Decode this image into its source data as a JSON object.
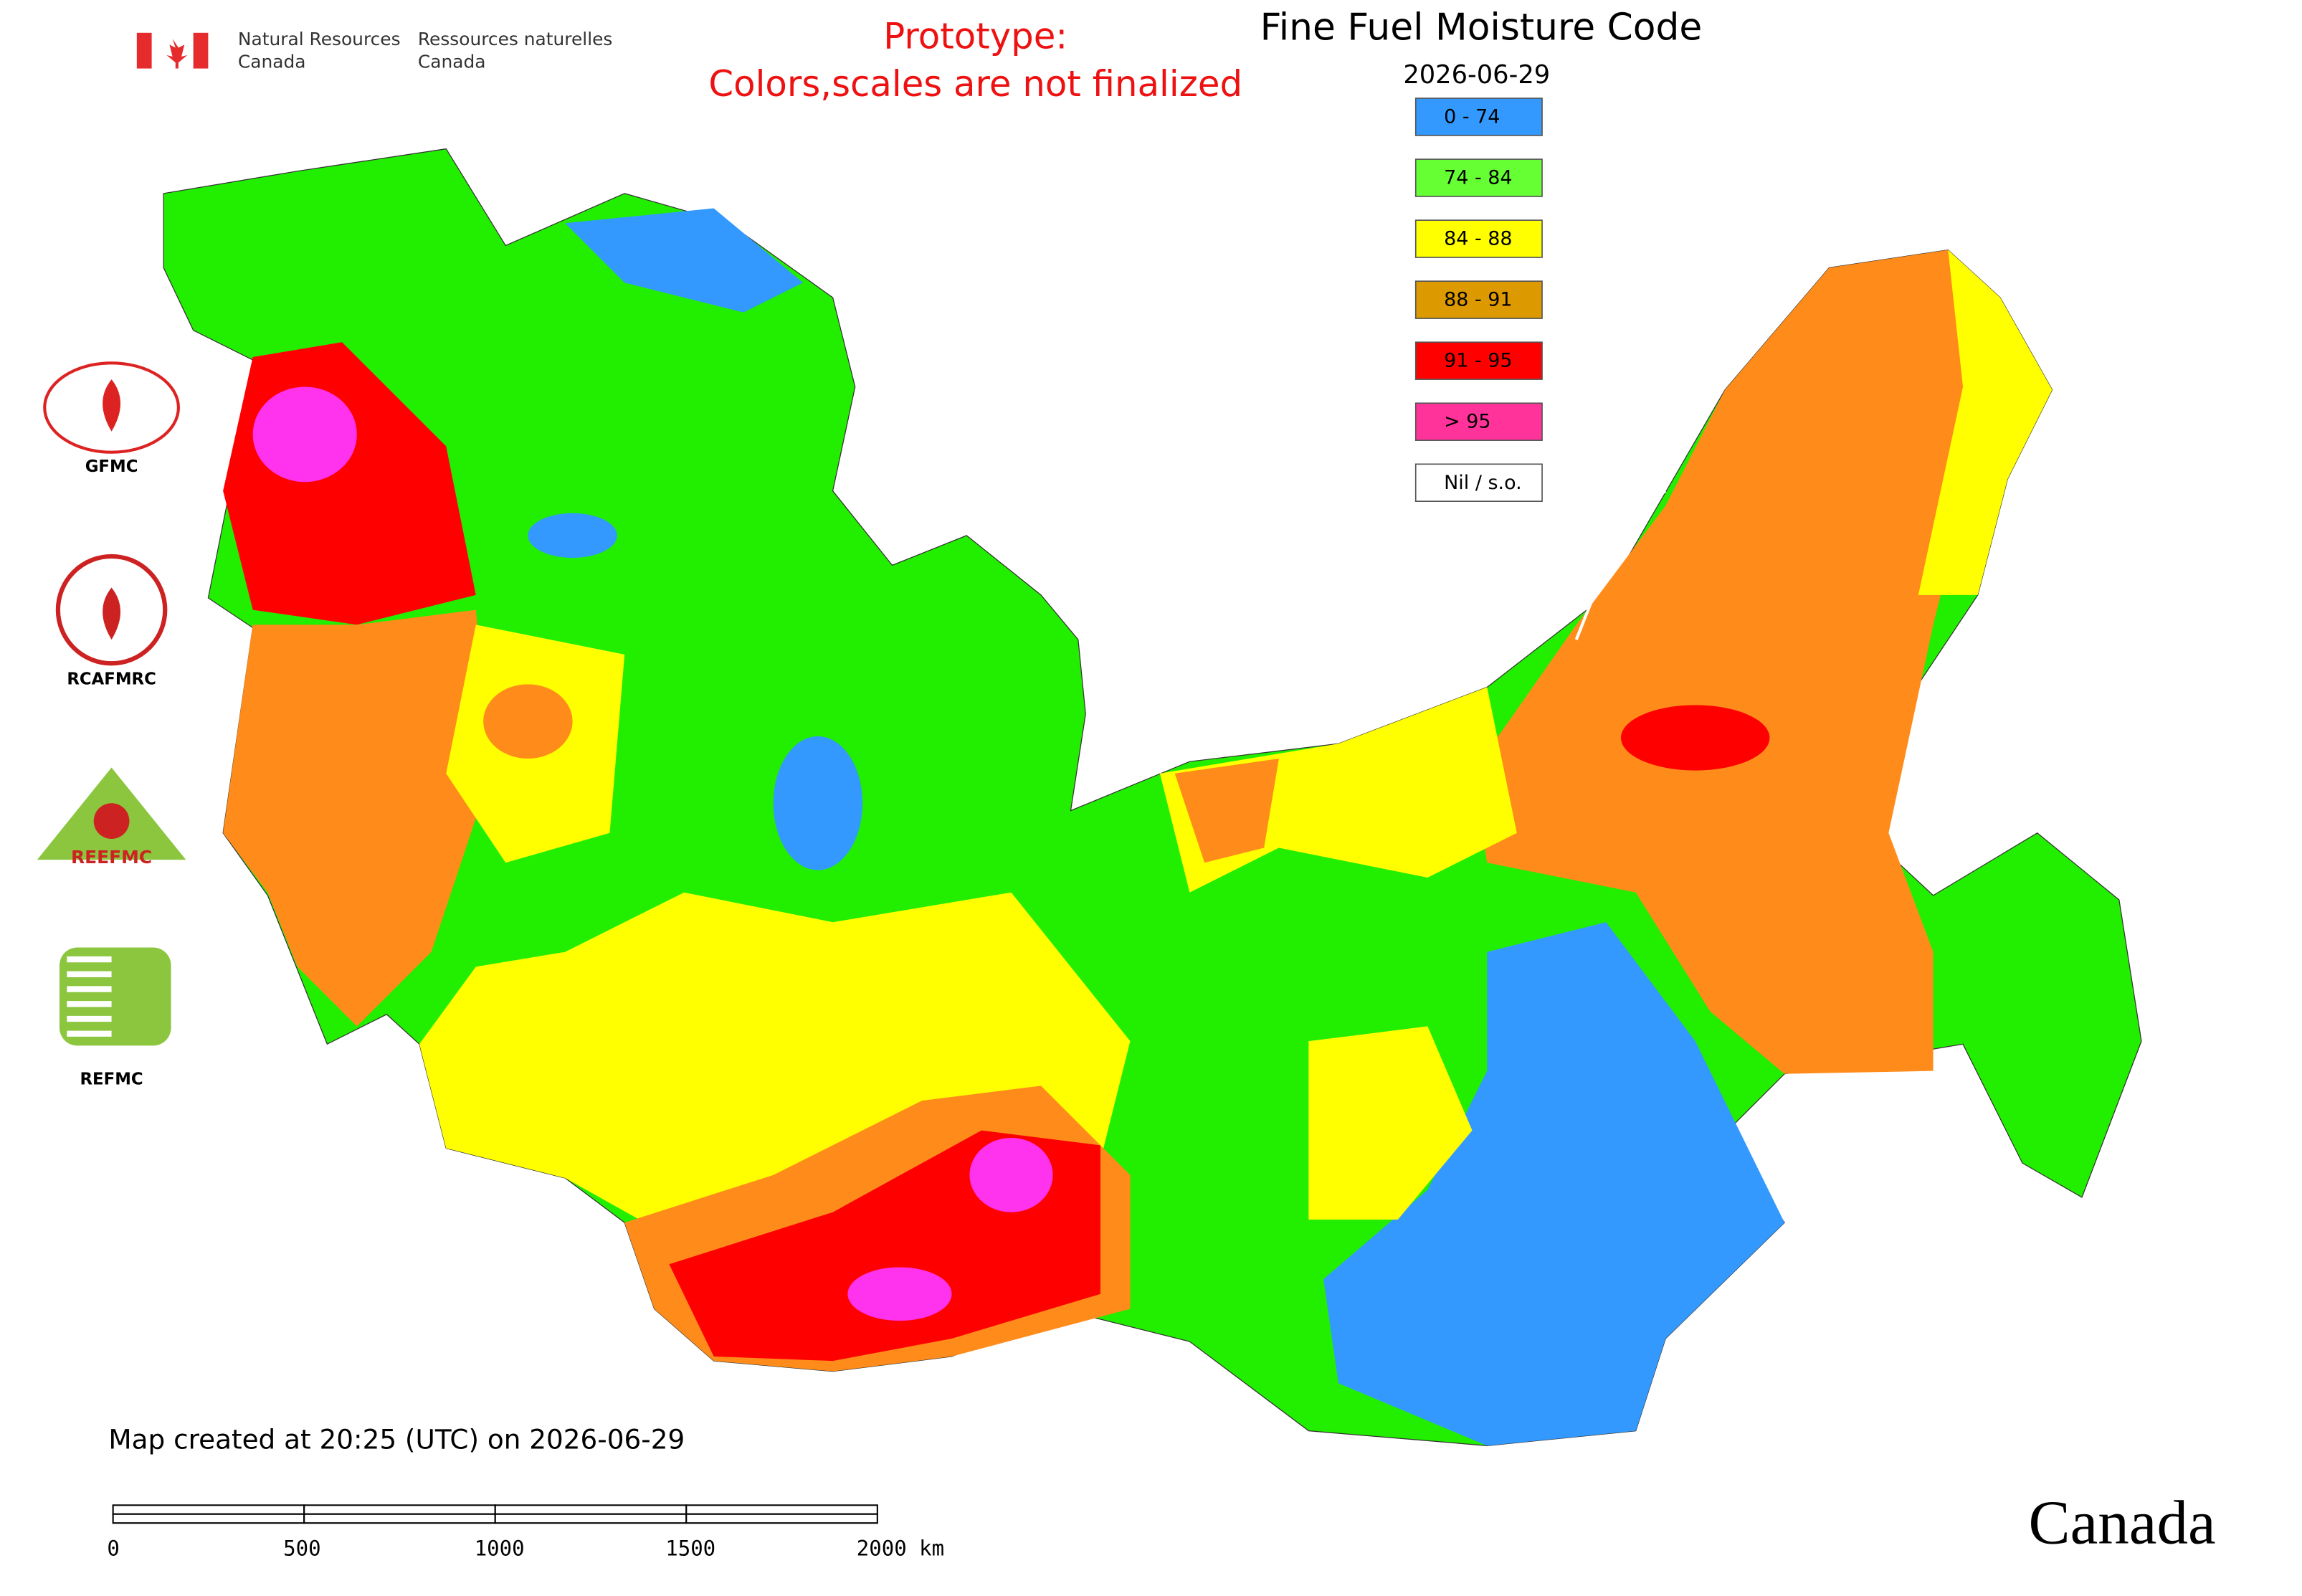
{
  "header": {
    "agency_en": [
      "Natural Resources",
      "Canada"
    ],
    "agency_fr": [
      "Ressources naturelles",
      "Canada"
    ]
  },
  "notice": [
    "Prototype:",
    "Colors,scales are not finalized"
  ],
  "title": "Fine Fuel Moisture Code",
  "date": "2026-06-29",
  "legend": [
    {
      "label": "0 - 74",
      "color": "#3399ff"
    },
    {
      "label": "74 - 84",
      "color": "#66ff33"
    },
    {
      "label": "84 - 88",
      "color": "#ffff00"
    },
    {
      "label": "88 - 91",
      "color": "#dd9900"
    },
    {
      "label": "91 - 95",
      "color": "#ff0000"
    },
    {
      "label": "> 95",
      "color": "#ff3399"
    },
    {
      "label": "Nil / s.o.",
      "color": "#ffffff"
    }
  ],
  "logos": [
    "GFMC",
    "RCAFMRC",
    "REEFMC",
    "REFMC"
  ],
  "footer": "Map created at 20:25 (UTC) on 2026-06-29",
  "scale_bar": [
    "0",
    "500",
    "1000",
    "1500",
    "2000 km"
  ],
  "wordmark": "Canada"
}
